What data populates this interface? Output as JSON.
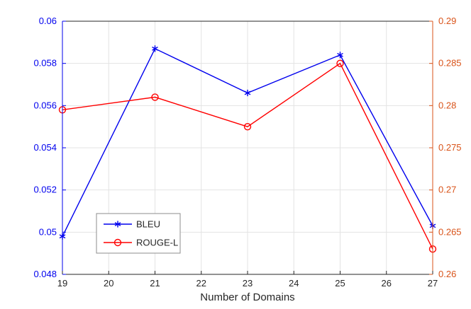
{
  "figure": {
    "background": "#ffffff"
  },
  "chart_data": {
    "type": "line",
    "x": [
      19,
      21,
      23,
      25,
      27
    ],
    "series": [
      {
        "name": "BLEU",
        "axis": "left",
        "color": "#0000EE",
        "marker": "asterisk",
        "values": [
          0.0498,
          0.0587,
          0.0566,
          0.0584,
          0.0503
        ]
      },
      {
        "name": "ROUGE-L",
        "axis": "right",
        "color": "#FF0000",
        "marker": "circle",
        "values": [
          0.2795,
          0.281,
          0.2775,
          0.285,
          0.263
        ]
      }
    ],
    "title": "",
    "xlabel": "Number of Domains",
    "xlim": [
      19,
      27
    ],
    "x_ticks": [
      19,
      20,
      21,
      22,
      23,
      24,
      25,
      26,
      27
    ],
    "x_tick_labels": [
      "19",
      "20",
      "21",
      "22",
      "23",
      "24",
      "25",
      "26",
      "27"
    ],
    "left_axis": {
      "lim": [
        0.048,
        0.06
      ],
      "ticks": [
        0.048,
        0.05,
        0.052,
        0.054,
        0.056,
        0.058,
        0.06
      ],
      "tick_labels": [
        "0.048",
        "0.05",
        "0.052",
        "0.054",
        "0.056",
        "0.058",
        "0.06"
      ],
      "color": "#0000EE"
    },
    "right_axis": {
      "lim": [
        0.26,
        0.29
      ],
      "ticks": [
        0.26,
        0.265,
        0.27,
        0.275,
        0.28,
        0.285,
        0.29
      ],
      "tick_labels": [
        "0.26",
        "0.265",
        "0.27",
        "0.275",
        "0.28",
        "0.285",
        "0.29"
      ],
      "color": "#D95319"
    },
    "legend": {
      "entries": [
        "BLEU",
        "ROUGE-L"
      ],
      "position": "lower-left"
    },
    "grid": true,
    "grid_color": "#E3E3E3",
    "axis_text_color": "#262626"
  }
}
